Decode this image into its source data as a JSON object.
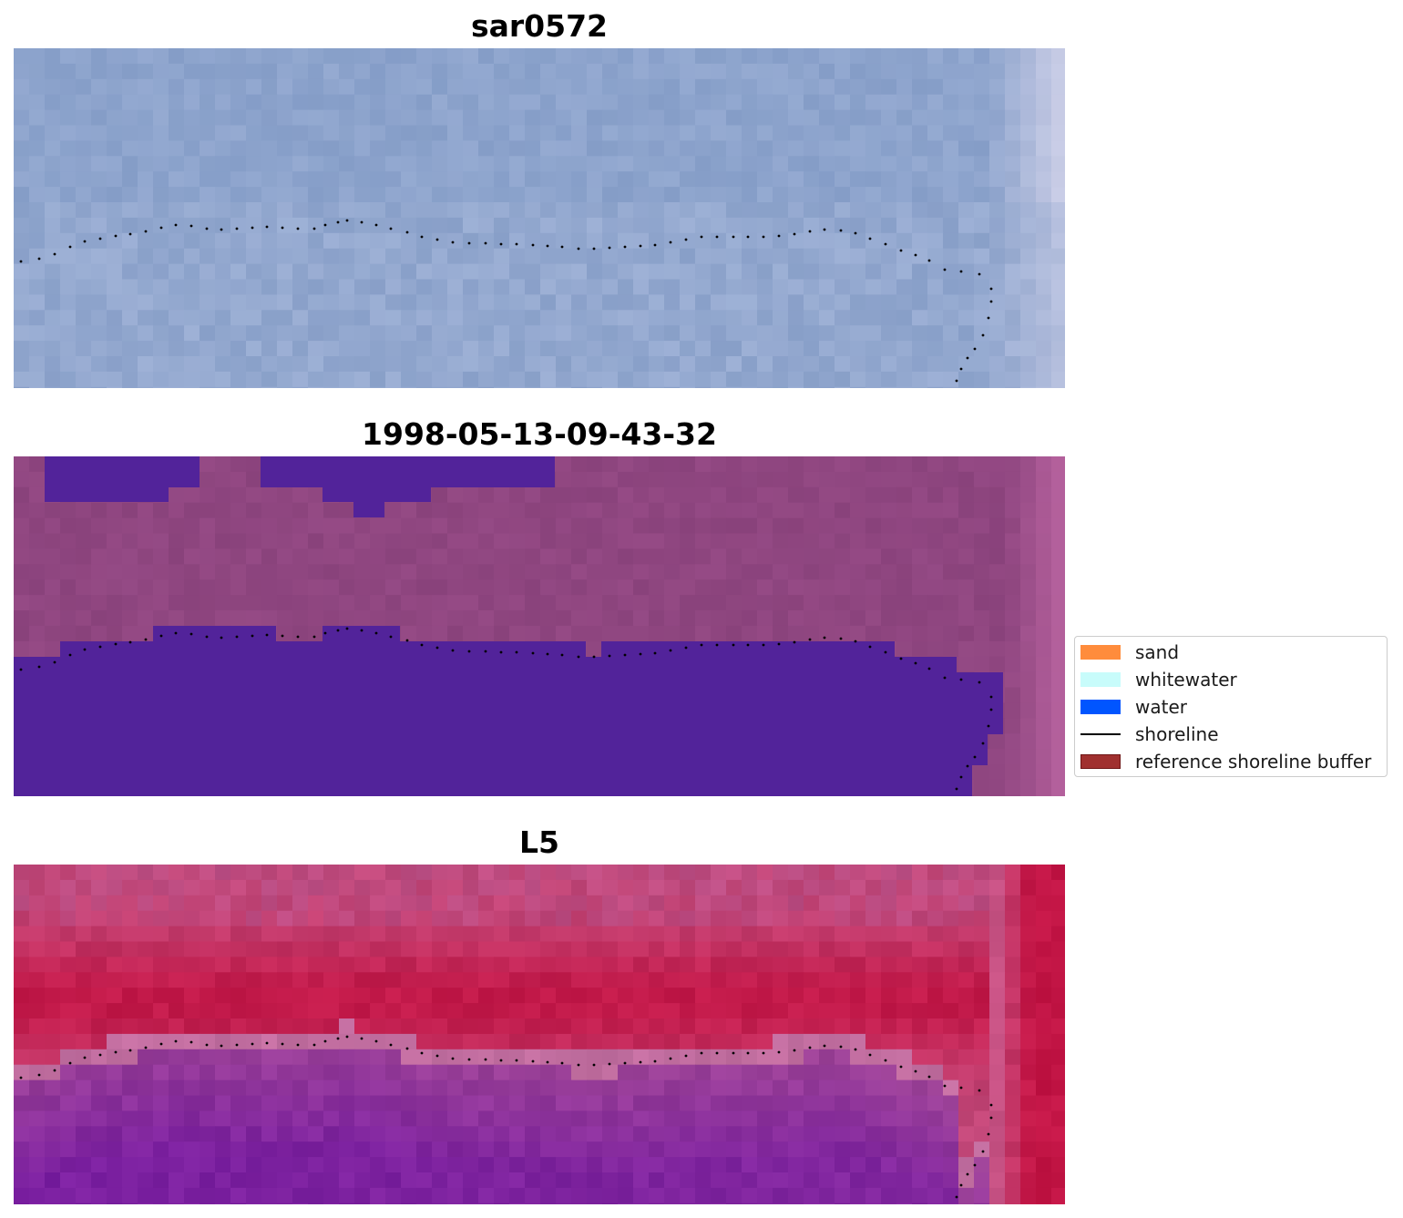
{
  "panels": [
    {
      "id": "rgb",
      "title": "sar0572"
    },
    {
      "id": "classified",
      "title": "1998-05-13-09-43-32"
    },
    {
      "id": "index",
      "title": "L5"
    }
  ],
  "legend": {
    "items": [
      {
        "label": "sand",
        "type": "patch",
        "color": "#ff8c3c"
      },
      {
        "label": "whitewater",
        "type": "patch",
        "color": "#c8fcfb"
      },
      {
        "label": "water",
        "type": "patch",
        "color": "#0055ff"
      },
      {
        "label": "shoreline",
        "type": "line",
        "color": "#000000"
      },
      {
        "label": "reference shoreline buffer",
        "type": "patch",
        "color": "#a0302f",
        "edge": "#6e1414"
      }
    ]
  },
  "colors": {
    "rgb_base": "#93a8cf",
    "classified_land": "#8f4680",
    "classified_water": "#52239a",
    "index_high": "#c21545",
    "index_low": "#7a1fa0",
    "shoreline": "#000000"
  }
}
